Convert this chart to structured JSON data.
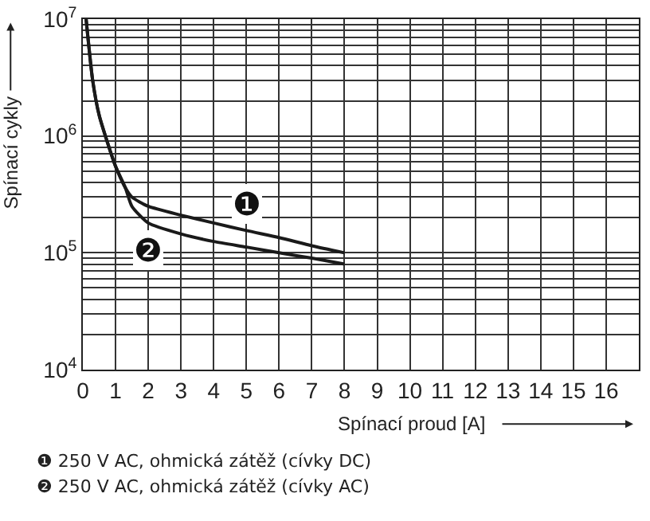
{
  "chart_data": {
    "type": "line",
    "log": "y",
    "xlabel": "Spínací proud [A]",
    "ylabel": "Spínací cykly",
    "xlim": [
      0,
      17
    ],
    "xticks": [
      0,
      1,
      2,
      3,
      4,
      5,
      6,
      7,
      8,
      9,
      10,
      11,
      12,
      13,
      14,
      15,
      16
    ],
    "ylim": [
      10000,
      10000000
    ],
    "yticks": [
      {
        "value": 10000,
        "label": "10$^{4}$"
      },
      {
        "value": 20000,
        "label": null
      },
      {
        "value": 30000,
        "label": null
      },
      {
        "value": 40000,
        "label": null
      },
      {
        "value": 50000,
        "label": null
      },
      {
        "value": 60000,
        "label": null
      },
      {
        "value": 70000,
        "label": null
      },
      {
        "value": 80000,
        "label": null
      },
      {
        "value": 90000,
        "label": null
      },
      {
        "value": 100000,
        "label": "10$^{5}$"
      },
      {
        "value": 200000,
        "label": null
      },
      {
        "value": 300000,
        "label": null
      },
      {
        "value": 400000,
        "label": null
      },
      {
        "value": 500000,
        "label": null
      },
      {
        "value": 600000,
        "label": null
      },
      {
        "value": 700000,
        "label": null
      },
      {
        "value": 800000,
        "label": null
      },
      {
        "value": 900000,
        "label": null
      },
      {
        "value": 1000000,
        "label": "10$^{6}$"
      },
      {
        "value": 2000000,
        "label": null
      },
      {
        "value": 3000000,
        "label": null
      },
      {
        "value": 4000000,
        "label": null
      },
      {
        "value": 5000000,
        "label": null
      },
      {
        "value": 6000000,
        "label": null
      },
      {
        "value": 7000000,
        "label": null
      },
      {
        "value": 8000000,
        "label": null
      },
      {
        "value": 9000000,
        "label": null
      },
      {
        "value": 10000000,
        "label": "10$^{7}$"
      }
    ],
    "grid": true,
    "marker": "none",
    "line_style": "solid",
    "series": [
      {
        "color": "#1a1a1a",
        "x": [
          0.1,
          0.3,
          0.5,
          0.8,
          1,
          1.3,
          1.5,
          2,
          3,
          4,
          5,
          6,
          7,
          8
        ],
        "values": [
          10000000,
          3000000,
          1500000,
          800000,
          550000,
          360000,
          300000,
          250000,
          210000,
          180000,
          155000,
          135000,
          115000,
          100000
        ]
      },
      {
        "color": "#1a1a1a",
        "x": [
          0.1,
          0.3,
          0.5,
          0.8,
          1,
          1.3,
          1.5,
          2,
          3,
          4,
          5,
          6,
          7,
          8
        ],
        "values": [
          10000000,
          3000000,
          1500000,
          800000,
          550000,
          360000,
          250000,
          180000,
          145000,
          125000,
          112000,
          100000,
          90000,
          80000
        ]
      }
    ],
    "annotations": [
      "❶",
      "❷",
      "❶ 250 V AC, ohmická zátěž (cívky DC)",
      "❷ 250 V AC, ohmická zátěž (cívky AC)"
    ]
  }
}
